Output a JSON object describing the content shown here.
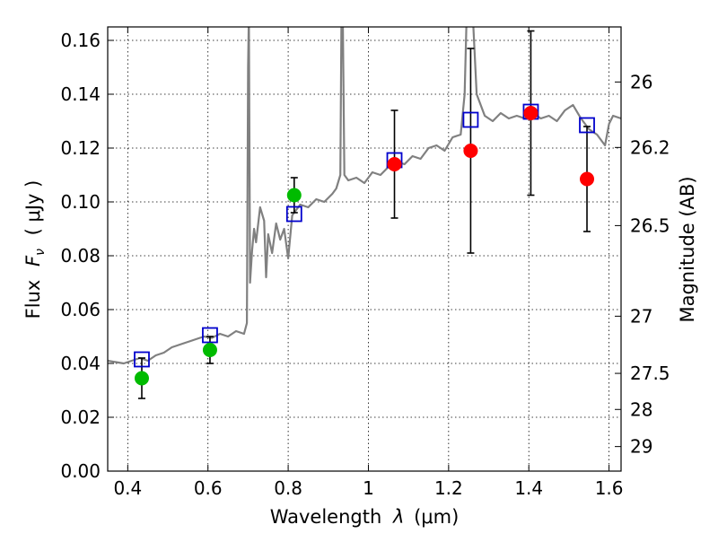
{
  "chart_data": {
    "type": "scatter",
    "title": "",
    "xlabel": {
      "prefix": "Wavelength",
      "symbol": "λ",
      "unit": "(μm)"
    },
    "ylabel": {
      "prefix": "Flux",
      "symbol": "F",
      "subscript": "ν",
      "unit": "( μJy )"
    },
    "y2label": "Magnitude (AB)",
    "xlim": [
      0.35,
      1.63
    ],
    "ylim": [
      0.0,
      0.165
    ],
    "grid": true,
    "legend": "none",
    "x_ticks": [
      {
        "value": 0.4,
        "label": "0.4"
      },
      {
        "value": 0.6,
        "label": "0.6"
      },
      {
        "value": 0.8,
        "label": "0.8"
      },
      {
        "value": 1.0,
        "label": "1"
      },
      {
        "value": 1.2,
        "label": "1.2"
      },
      {
        "value": 1.4,
        "label": "1.4"
      },
      {
        "value": 1.6,
        "label": "1.6"
      }
    ],
    "y_ticks": [
      {
        "value": 0.0,
        "label": "0.00"
      },
      {
        "value": 0.02,
        "label": "0.02"
      },
      {
        "value": 0.04,
        "label": "0.04"
      },
      {
        "value": 0.06,
        "label": "0.06"
      },
      {
        "value": 0.08,
        "label": "0.08"
      },
      {
        "value": 0.1,
        "label": "0.10"
      },
      {
        "value": 0.12,
        "label": "0.12"
      },
      {
        "value": 0.14,
        "label": "0.14"
      },
      {
        "value": 0.16,
        "label": "0.16"
      }
    ],
    "y2_ticks": [
      {
        "value": 26.0,
        "label": "26"
      },
      {
        "value": 26.2,
        "label": "26.2"
      },
      {
        "value": 26.5,
        "label": "26.5"
      },
      {
        "value": 27.0,
        "label": "27"
      },
      {
        "value": 27.5,
        "label": "27.5"
      },
      {
        "value": 28.0,
        "label": "28"
      },
      {
        "value": 29.0,
        "label": "29"
      }
    ],
    "series": [
      {
        "kind": "line",
        "color": "#808080",
        "points": [
          [
            0.35,
            0.041
          ],
          [
            0.37,
            0.0405
          ],
          [
            0.39,
            0.04
          ],
          [
            0.41,
            0.041
          ],
          [
            0.43,
            0.042
          ],
          [
            0.45,
            0.041
          ],
          [
            0.47,
            0.043
          ],
          [
            0.49,
            0.044
          ],
          [
            0.51,
            0.046
          ],
          [
            0.53,
            0.047
          ],
          [
            0.55,
            0.048
          ],
          [
            0.57,
            0.049
          ],
          [
            0.59,
            0.05
          ],
          [
            0.61,
            0.0495
          ],
          [
            0.63,
            0.051
          ],
          [
            0.65,
            0.05
          ],
          [
            0.67,
            0.052
          ],
          [
            0.69,
            0.051
          ],
          [
            0.697,
            0.055
          ],
          [
            0.7,
            0.15
          ],
          [
            0.702,
            0.17
          ],
          [
            0.705,
            0.07
          ],
          [
            0.71,
            0.082
          ],
          [
            0.715,
            0.09
          ],
          [
            0.72,
            0.085
          ],
          [
            0.73,
            0.098
          ],
          [
            0.74,
            0.093
          ],
          [
            0.745,
            0.072
          ],
          [
            0.75,
            0.088
          ],
          [
            0.76,
            0.081
          ],
          [
            0.77,
            0.092
          ],
          [
            0.78,
            0.086
          ],
          [
            0.79,
            0.09
          ],
          [
            0.8,
            0.079
          ],
          [
            0.81,
            0.095
          ],
          [
            0.82,
            0.097
          ],
          [
            0.83,
            0.099
          ],
          [
            0.85,
            0.098
          ],
          [
            0.87,
            0.101
          ],
          [
            0.89,
            0.1
          ],
          [
            0.91,
            0.103
          ],
          [
            0.92,
            0.105
          ],
          [
            0.93,
            0.11
          ],
          [
            0.933,
            0.17
          ],
          [
            0.936,
            0.17
          ],
          [
            0.94,
            0.11
          ],
          [
            0.95,
            0.108
          ],
          [
            0.97,
            0.109
          ],
          [
            0.99,
            0.107
          ],
          [
            1.01,
            0.111
          ],
          [
            1.03,
            0.11
          ],
          [
            1.05,
            0.113
          ],
          [
            1.07,
            0.115
          ],
          [
            1.09,
            0.114
          ],
          [
            1.11,
            0.117
          ],
          [
            1.13,
            0.116
          ],
          [
            1.15,
            0.12
          ],
          [
            1.17,
            0.121
          ],
          [
            1.19,
            0.119
          ],
          [
            1.21,
            0.124
          ],
          [
            1.23,
            0.125
          ],
          [
            1.24,
            0.14
          ],
          [
            1.245,
            0.17
          ],
          [
            1.26,
            0.17
          ],
          [
            1.27,
            0.14
          ],
          [
            1.29,
            0.132
          ],
          [
            1.31,
            0.13
          ],
          [
            1.33,
            0.133
          ],
          [
            1.35,
            0.131
          ],
          [
            1.37,
            0.132
          ],
          [
            1.39,
            0.131
          ],
          [
            1.41,
            0.133
          ],
          [
            1.43,
            0.131
          ],
          [
            1.45,
            0.132
          ],
          [
            1.47,
            0.13
          ],
          [
            1.49,
            0.134
          ],
          [
            1.51,
            0.136
          ],
          [
            1.53,
            0.131
          ],
          [
            1.55,
            0.127
          ],
          [
            1.57,
            0.125
          ],
          [
            1.59,
            0.121
          ],
          [
            1.6,
            0.129
          ],
          [
            1.61,
            0.132
          ],
          [
            1.63,
            0.131
          ]
        ]
      },
      {
        "kind": "model_points",
        "marker": "open-square",
        "color": "#0000cc",
        "points": [
          [
            0.435,
            0.0415
          ],
          [
            0.605,
            0.0505
          ],
          [
            0.815,
            0.0955
          ],
          [
            1.065,
            0.1155
          ],
          [
            1.255,
            0.1305
          ],
          [
            1.405,
            0.1335
          ],
          [
            1.545,
            0.1285
          ]
        ]
      },
      {
        "kind": "observed",
        "marker": "filled-circle",
        "color": "#00bb00",
        "points": [
          {
            "x": 0.435,
            "y": 0.0345,
            "err": 0.0075
          },
          {
            "x": 0.605,
            "y": 0.045,
            "err": 0.005
          },
          {
            "x": 0.815,
            "y": 0.1025,
            "err": 0.0065
          }
        ]
      },
      {
        "kind": "observed",
        "marker": "filled-circle",
        "color": "#ff0000",
        "points": [
          {
            "x": 1.065,
            "y": 0.114,
            "err": 0.02
          },
          {
            "x": 1.255,
            "y": 0.119,
            "err": 0.038
          },
          {
            "x": 1.405,
            "y": 0.133,
            "err": 0.0305
          },
          {
            "x": 1.545,
            "y": 0.1085,
            "err": 0.0195
          }
        ]
      }
    ]
  }
}
